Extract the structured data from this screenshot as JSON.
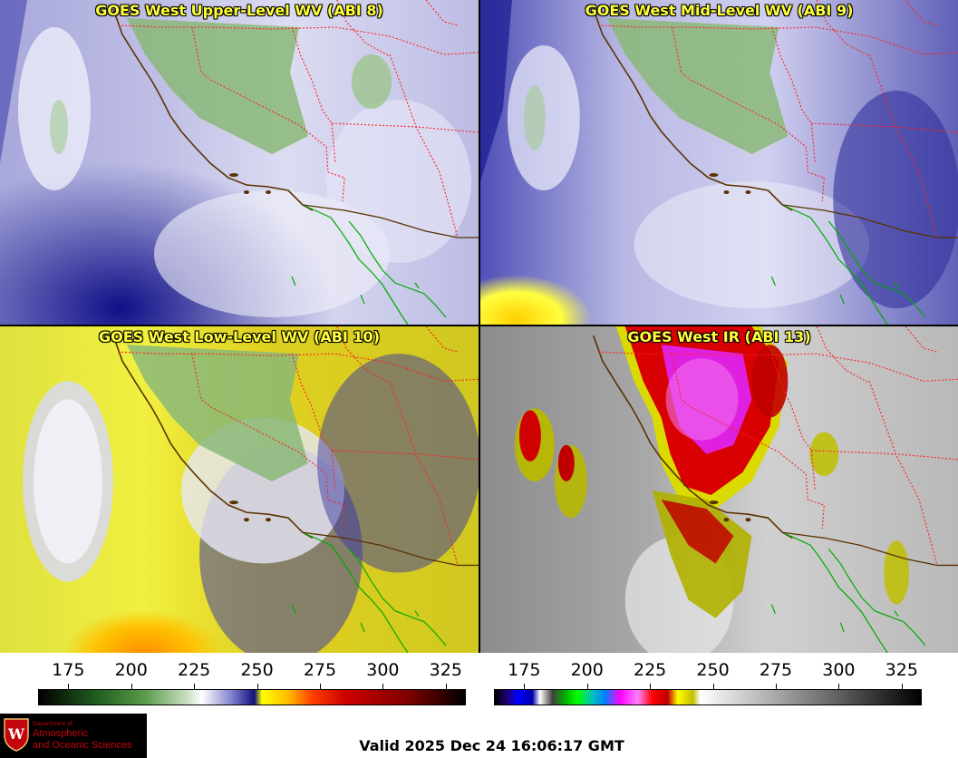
{
  "panels": [
    {
      "title": "GOES West Upper-Level WV (ABI 8)",
      "colortable": "water-vapor"
    },
    {
      "title": "GOES West Mid-Level WV (ABI 9)",
      "colortable": "water-vapor"
    },
    {
      "title": "GOES West Low-Level WV (ABI 10)",
      "colortable": "water-vapor"
    },
    {
      "title": "GOES West IR (ABI 13)",
      "colortable": "infrared"
    }
  ],
  "colorbars": {
    "wv": {
      "ticks": [
        "175",
        "200",
        "225",
        "250",
        "275",
        "300",
        "325"
      ],
      "range": [
        163,
        333
      ],
      "stops": [
        {
          "t": 163,
          "c": "#000000"
        },
        {
          "t": 185,
          "c": "#1e5a1e"
        },
        {
          "t": 205,
          "c": "#5a9a4a"
        },
        {
          "t": 222,
          "c": "#c8e0c0"
        },
        {
          "t": 228,
          "c": "#ffffff"
        },
        {
          "t": 240,
          "c": "#8080cc"
        },
        {
          "t": 249,
          "c": "#101080"
        },
        {
          "t": 252,
          "c": "#ffff00"
        },
        {
          "t": 262,
          "c": "#ffc000"
        },
        {
          "t": 272,
          "c": "#ff4000"
        },
        {
          "t": 285,
          "c": "#d00000"
        },
        {
          "t": 310,
          "c": "#800000"
        },
        {
          "t": 333,
          "c": "#000000"
        }
      ]
    },
    "ir": {
      "ticks": [
        "175",
        "200",
        "225",
        "250",
        "275",
        "300",
        "325"
      ],
      "range": [
        163,
        333
      ],
      "stops": [
        {
          "t": 163,
          "c": "#000000"
        },
        {
          "t": 168,
          "c": "#20007a"
        },
        {
          "t": 172,
          "c": "#0000ff"
        },
        {
          "t": 178,
          "c": "#0000aa"
        },
        {
          "t": 181,
          "c": "#ffffff"
        },
        {
          "t": 186,
          "c": "#404040"
        },
        {
          "t": 191,
          "c": "#00b000"
        },
        {
          "t": 196,
          "c": "#00ff00"
        },
        {
          "t": 202,
          "c": "#00c0c0"
        },
        {
          "t": 207,
          "c": "#0080ff"
        },
        {
          "t": 213,
          "c": "#ff00ff"
        },
        {
          "t": 220,
          "c": "#ff80ff"
        },
        {
          "t": 226,
          "c": "#ff0000"
        },
        {
          "t": 232,
          "c": "#c00000"
        },
        {
          "t": 236,
          "c": "#ffff00"
        },
        {
          "t": 242,
          "c": "#c0c000"
        },
        {
          "t": 245,
          "c": "#ffffff"
        },
        {
          "t": 333,
          "c": "#000000"
        }
      ]
    }
  },
  "logo": {
    "line1": "Department of",
    "line2": "Atmospheric",
    "line3": "and Oceanic Sciences"
  },
  "valid_time": "Valid 2025 Dec 24 16:06:17 GMT"
}
